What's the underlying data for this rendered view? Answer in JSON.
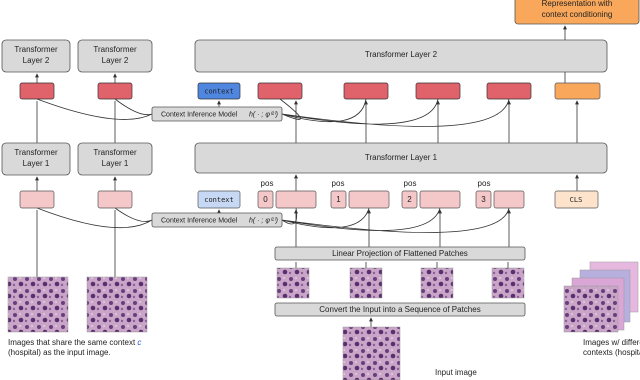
{
  "output": {
    "lines": [
      "Representation with",
      "context conditioning"
    ]
  },
  "layer2": {
    "left_boxes": [
      [
        "Transformer",
        "Layer 2"
      ],
      [
        "Transformer",
        "Layer 2"
      ]
    ],
    "main": "Transformer Layer 2",
    "context": "context",
    "cim": {
      "label": "Context Inference Model",
      "math": "h( · ; φ⁽²⁾)"
    }
  },
  "layer1": {
    "left_boxes": [
      [
        "Transformer",
        "Layer 1"
      ],
      [
        "Transformer",
        "Layer 1"
      ]
    ],
    "main": "Transformer Layer 1",
    "context": "context",
    "pos": [
      "pos",
      "pos",
      "pos",
      "pos"
    ],
    "indices": [
      "0",
      "1",
      "2",
      "3"
    ],
    "cls": "CLS",
    "cim": {
      "label": "Context Inference Model",
      "math": "h( · ; φ⁽¹⁾)"
    }
  },
  "linear_projection": "Linear Projection of Flattened Patches",
  "convert": "Convert the Input into a Sequence of Patches",
  "input_image": "Input image",
  "same_context_caption": {
    "line1": "Images that share the same context",
    "symbol": "c",
    "line2": "(hospital) as the input image."
  },
  "different_context_caption": [
    "Images w/ different",
    "contexts (hospitals)."
  ]
}
